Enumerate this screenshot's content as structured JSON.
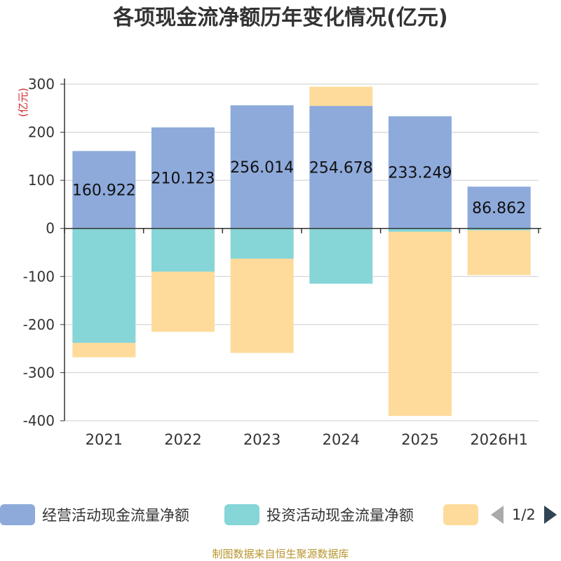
{
  "title": "各项现金流净额历年变化情况(亿元)",
  "source_note": "制图数据来自恒生聚源数据库",
  "legend": {
    "items": [
      {
        "label": "经营活动现金流量净额",
        "color": "#8eaadb"
      },
      {
        "label": "投资活动现金流量净额",
        "color": "#86d5d7"
      },
      {
        "label": "",
        "color": "#fedb9b"
      }
    ],
    "pager_text": "1/2"
  },
  "chart_data": {
    "type": "bar",
    "stacked": true,
    "title": "各项现金流净额历年变化情况(亿元)",
    "ylabel": "(亿元)",
    "ylim": [
      -400,
      300
    ],
    "yticks": [
      300,
      200,
      100,
      0,
      -100,
      -200,
      -300,
      -400
    ],
    "grid": true,
    "legend_position": "bottom",
    "categories": [
      "2021",
      "2022",
      "2023",
      "2024",
      "2025",
      "2026H1"
    ],
    "series": [
      {
        "name": "经营活动现金流量净额",
        "color": "#8eaadb",
        "values": [
          160.922,
          210.123,
          256.014,
          254.678,
          233.249,
          86.862
        ],
        "labels": [
          "160.922",
          "210.123",
          "256.014",
          "254.678",
          "233.249",
          "86.862"
        ]
      },
      {
        "name": "投资活动现金流量净额",
        "color": "#86d5d7",
        "values": [
          -238,
          -90,
          -63,
          -115,
          -7,
          -4
        ]
      },
      {
        "color": "#fedb9b",
        "values": [
          -30,
          -125,
          -196,
          40,
          -383,
          -93
        ]
      }
    ]
  }
}
